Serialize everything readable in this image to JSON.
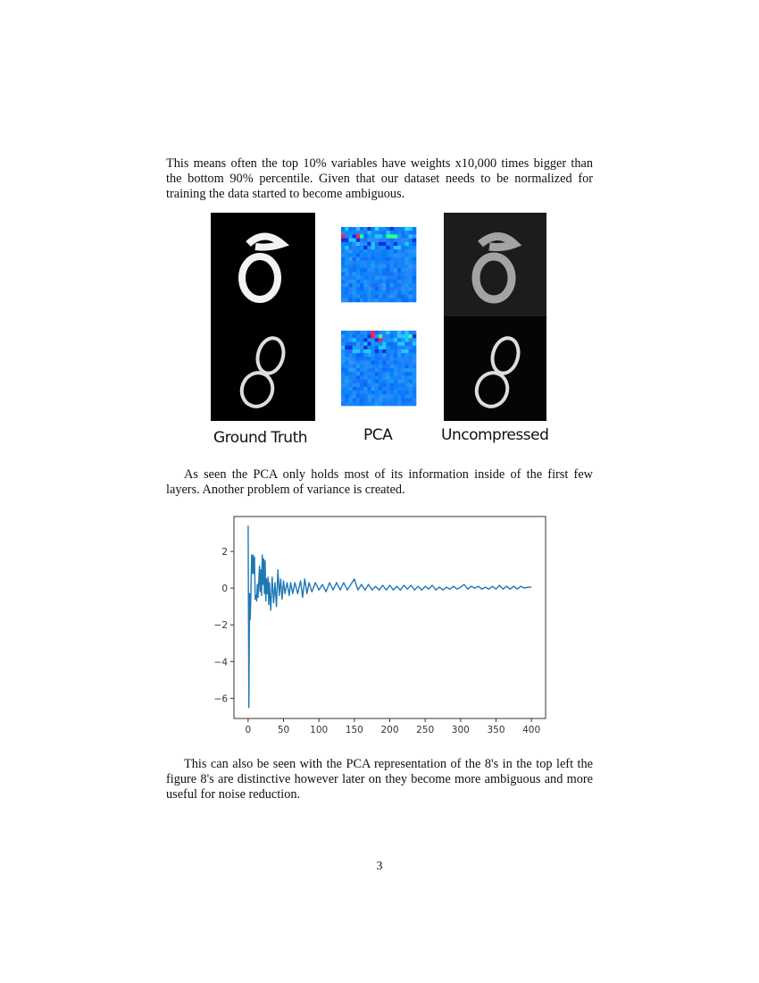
{
  "paragraphs": [
    "This means often the top 10% variables have weights x10,000 times bigger than the bottom 90% percentile. Given that our dataset needs to be normalized for training the data started to become ambiguous.",
    "As seen the PCA only holds most of its information inside of the first few layers. Another problem of variance is created.",
    "This can also be seen with the PCA representation of the 8's in the top left the figure 8's are distinctive however later on they become more ambiguous and more useful for noise reduction."
  ],
  "figure": {
    "labels": [
      "Ground Truth",
      "PCA",
      "Uncompressed"
    ]
  },
  "page_number": "3",
  "chart_data": {
    "type": "line",
    "title": "",
    "xlabel": "",
    "ylabel": "",
    "xlim": [
      -20,
      420
    ],
    "ylim": [
      -7.1,
      3.9
    ],
    "xticks": [
      0,
      50,
      100,
      150,
      200,
      250,
      300,
      350,
      400
    ],
    "yticks": [
      -6,
      -4,
      -2,
      0,
      2
    ],
    "ytick_labels": [
      "−6",
      "−4",
      "−2",
      "0",
      "2"
    ],
    "grid": false,
    "color": "#1f77b4",
    "series": [
      {
        "x": [
          0,
          1,
          2,
          3,
          4,
          5,
          6,
          7,
          8,
          9,
          10,
          11,
          12,
          13,
          14,
          15,
          16,
          17,
          18,
          19,
          20,
          21,
          22,
          23,
          24,
          25,
          26,
          27,
          28,
          29,
          30,
          32,
          34,
          36,
          38,
          40,
          42,
          44,
          46,
          48,
          50,
          52,
          55,
          58,
          60,
          63,
          66,
          70,
          74,
          77,
          80,
          83,
          86,
          90,
          95,
          100,
          105,
          110,
          115,
          120,
          125,
          130,
          135,
          140,
          145,
          150,
          155,
          160,
          165,
          170,
          175,
          180,
          185,
          190,
          195,
          200,
          205,
          210,
          215,
          220,
          225,
          230,
          235,
          240,
          245,
          250,
          255,
          260,
          265,
          270,
          275,
          280,
          285,
          290,
          295,
          300,
          305,
          310,
          315,
          320,
          325,
          330,
          335,
          340,
          345,
          350,
          355,
          360,
          365,
          370,
          375,
          380,
          385,
          390,
          395,
          400
        ],
        "y": [
          3.4,
          -6.5,
          -0.3,
          -1.7,
          -0.3,
          1.8,
          0.8,
          1.8,
          0.8,
          1.7,
          -0.6,
          -0.4,
          -0.7,
          0.2,
          -0.5,
          0.4,
          1.2,
          -0.2,
          1.0,
          -0.4,
          1.8,
          0.2,
          1.6,
          -0.3,
          1.5,
          -0.7,
          0.5,
          -0.3,
          0.6,
          -0.9,
          0.3,
          -1.2,
          0.6,
          -0.8,
          0.3,
          -1.0,
          1.0,
          -0.4,
          0.5,
          -0.6,
          0.4,
          -0.3,
          0.3,
          -0.4,
          0.3,
          -0.3,
          0.3,
          -0.3,
          0.4,
          -0.5,
          0.5,
          -0.3,
          0.3,
          -0.2,
          0.3,
          -0.1,
          0.2,
          -0.2,
          0.3,
          -0.1,
          0.3,
          -0.1,
          0.3,
          -0.1,
          0.2,
          0.5,
          -0.1,
          0.2,
          -0.1,
          0.2,
          -0.1,
          0.1,
          -0.1,
          0.15,
          -0.1,
          0.15,
          -0.1,
          0.1,
          -0.1,
          0.15,
          -0.05,
          0.15,
          -0.1,
          0.1,
          -0.1,
          0.1,
          -0.05,
          0.15,
          -0.1,
          0.05,
          -0.1,
          0.05,
          -0.05,
          0.1,
          -0.05,
          0.05,
          0.2,
          -0.05,
          0.1,
          0.0,
          0.1,
          -0.05,
          0.05,
          -0.05,
          0.1,
          -0.05,
          0.15,
          -0.05,
          0.1,
          -0.05,
          0.1,
          -0.05,
          0.1,
          0.0,
          0.05,
          0.05
        ]
      }
    ]
  }
}
